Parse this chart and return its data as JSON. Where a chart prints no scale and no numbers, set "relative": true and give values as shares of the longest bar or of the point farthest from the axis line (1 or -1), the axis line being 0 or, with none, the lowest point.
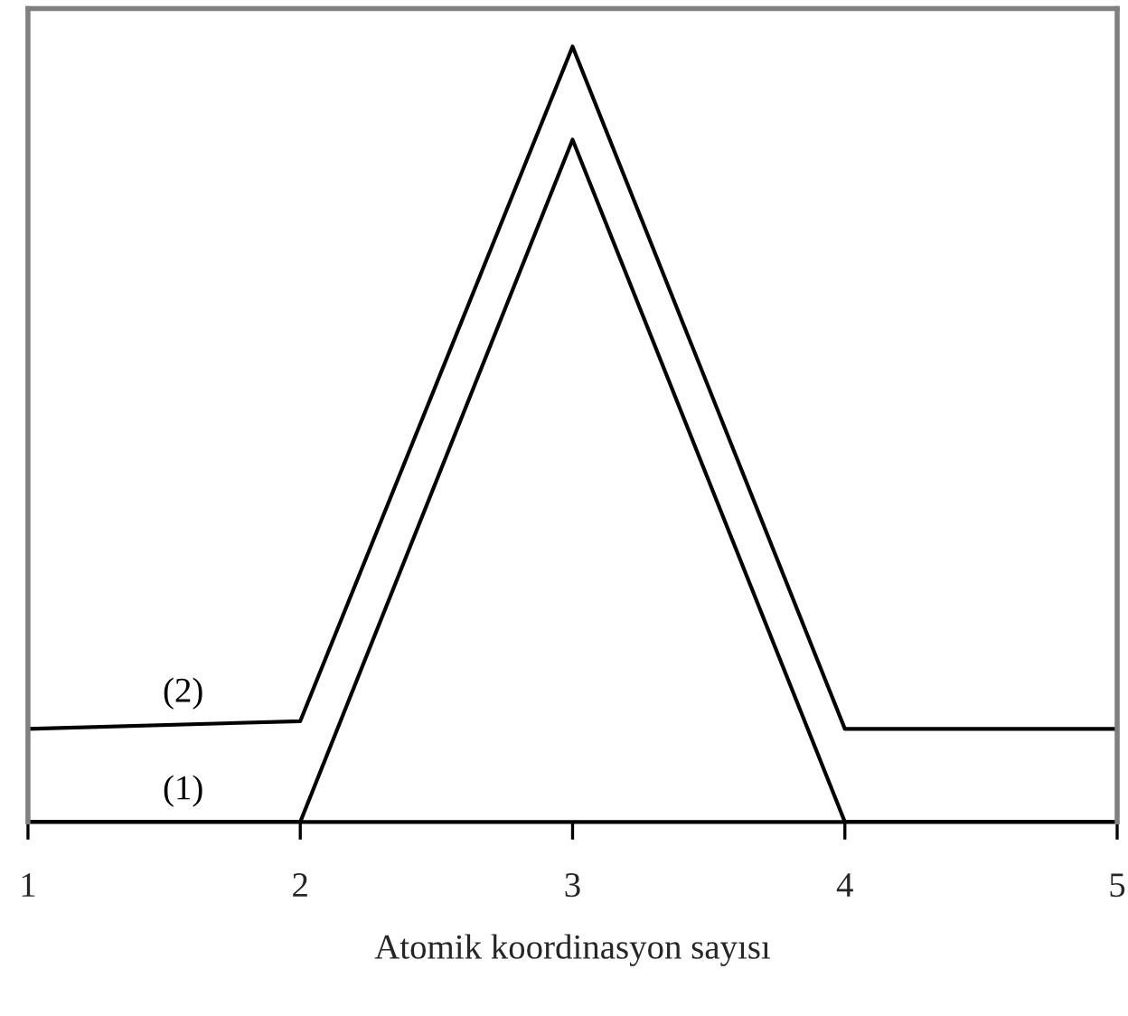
{
  "chart_data": {
    "type": "line",
    "relative": true,
    "xlabel": "Atomik koordinasyon sayısı",
    "x": [
      1,
      2,
      3,
      4,
      5
    ],
    "xlim": [
      1,
      5
    ],
    "xticks": [
      1,
      2,
      3,
      4,
      5
    ],
    "tick_labels": "x",
    "series": [
      {
        "name": "(1)",
        "color": "#000000",
        "values": [
          0,
          0,
          0.88,
          0,
          0
        ]
      },
      {
        "name": "(2)",
        "color": "#000000",
        "values": [
          0.12,
          0.13,
          1,
          0.12,
          0.12
        ]
      }
    ]
  }
}
